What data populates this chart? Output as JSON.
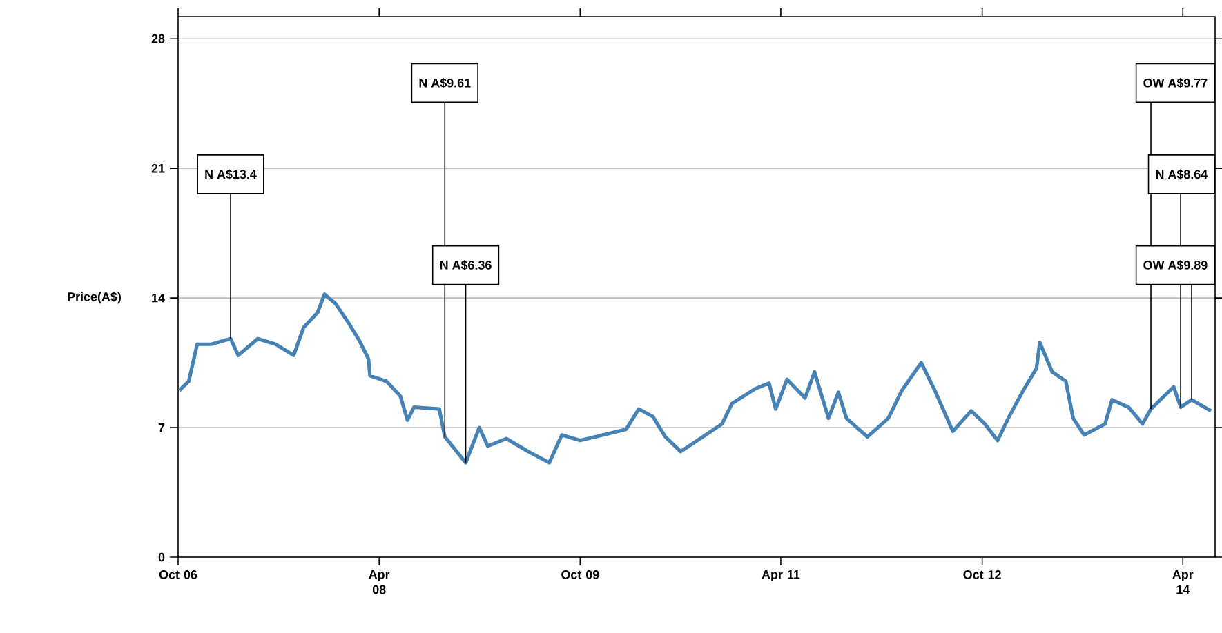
{
  "chart_data": {
    "type": "line",
    "ylabel": "Price(A$)",
    "x": [
      "2006-10-04",
      "2006-10-30",
      "2006-11-22",
      "2006-12-30",
      "2007-02-21",
      "2007-03-14",
      "2007-05-06",
      "2007-06-24",
      "2007-08-12",
      "2007-09-08",
      "2007-10-16",
      "2007-11-04",
      "2007-12-04",
      "2008-01-07",
      "2008-02-07",
      "2008-03-03",
      "2008-03-07",
      "2008-04-21",
      "2008-05-29",
      "2008-06-17",
      "2008-07-05",
      "2008-09-12",
      "2008-09-27",
      "2008-11-23",
      "2008-12-30",
      "2009-01-22",
      "2009-03-14",
      "2009-05-13",
      "2009-07-09",
      "2009-08-12",
      "2009-10-01",
      "2010-02-03",
      "2010-03-10",
      "2010-04-17",
      "2010-05-21",
      "2010-07-02",
      "2010-08-24",
      "2010-10-23",
      "2010-11-19",
      "2011-01-22",
      "2011-02-28",
      "2011-03-18",
      "2011-04-18",
      "2011-06-06",
      "2011-07-02",
      "2011-08-09",
      "2011-09-05",
      "2011-09-27",
      "2011-11-23",
      "2012-01-19",
      "2012-02-25",
      "2012-04-18",
      "2012-05-25",
      "2012-07-13",
      "2012-09-01",
      "2012-10-08",
      "2012-11-12",
      "2012-12-11",
      "2013-01-18",
      "2013-02-26",
      "2013-03-07",
      "2013-04-10",
      "2013-05-17",
      "2013-06-06",
      "2013-07-06",
      "2013-09-01",
      "2013-09-20",
      "2013-11-04",
      "2013-12-12",
      "2014-01-04",
      "2014-03-07",
      "2014-03-26",
      "2014-04-25",
      "2014-06-17"
    ],
    "series": [
      {
        "color": "#4682b4",
        "values": [
          9.0,
          9.5,
          11.5,
          11.5,
          11.8,
          10.9,
          11.8,
          11.5,
          10.9,
          12.4,
          13.2,
          14.2,
          13.7,
          12.7,
          11.7,
          10.7,
          9.8,
          9.5,
          8.7,
          7.4,
          8.1,
          8.0,
          6.5,
          5.1,
          7.0,
          6.0,
          6.4,
          5.7,
          5.1,
          6.6,
          6.3,
          6.9,
          8.0,
          7.6,
          6.5,
          5.7,
          6.4,
          7.2,
          8.3,
          9.1,
          9.4,
          8.0,
          9.6,
          8.6,
          10.0,
          7.5,
          8.9,
          7.5,
          6.5,
          7.5,
          9.0,
          10.5,
          9.0,
          6.8,
          7.9,
          7.2,
          6.3,
          7.5,
          8.9,
          10.2,
          11.6,
          10.0,
          9.5,
          7.5,
          6.6,
          7.2,
          8.5,
          8.1,
          7.2,
          8.0,
          9.2,
          8.1,
          8.5,
          7.9
        ]
      }
    ],
    "xlim": [
      "2006-10-01",
      "2014-06-28"
    ],
    "ylim": [
      0,
      29.2
    ],
    "xticks": [
      {
        "value": "2006-10-01",
        "label": "Oct 06"
      },
      {
        "value": "2008-04-01",
        "label": "Apr 08"
      },
      {
        "value": "2009-10-01",
        "label": "Oct 09"
      },
      {
        "value": "2011-04-01",
        "label": "Apr 11"
      },
      {
        "value": "2012-10-01",
        "label": "Oct 12"
      },
      {
        "value": "2014-04-01",
        "label": "Apr 14"
      }
    ],
    "yticks": [
      0,
      7,
      14,
      21,
      28
    ],
    "grid": "y",
    "line_style": "solid",
    "annotations": [
      {
        "text": "N A$13.4",
        "x": "2007-02-21",
        "y": 11.8
      },
      {
        "text": "N A$9.61",
        "x": "2008-09-27",
        "y": 6.5
      },
      {
        "text": "N A$6.36",
        "x": "2008-11-23",
        "y": 5.1
      },
      {
        "text": "N A$8.64",
        "x": "2014-03-26",
        "y": 8.1
      },
      {
        "text": "OW A$9.77",
        "x": "2014-01-04",
        "y": 8.0
      },
      {
        "text": "OW A$9.89",
        "x": "2014-04-25",
        "y": 8.5
      }
    ]
  }
}
